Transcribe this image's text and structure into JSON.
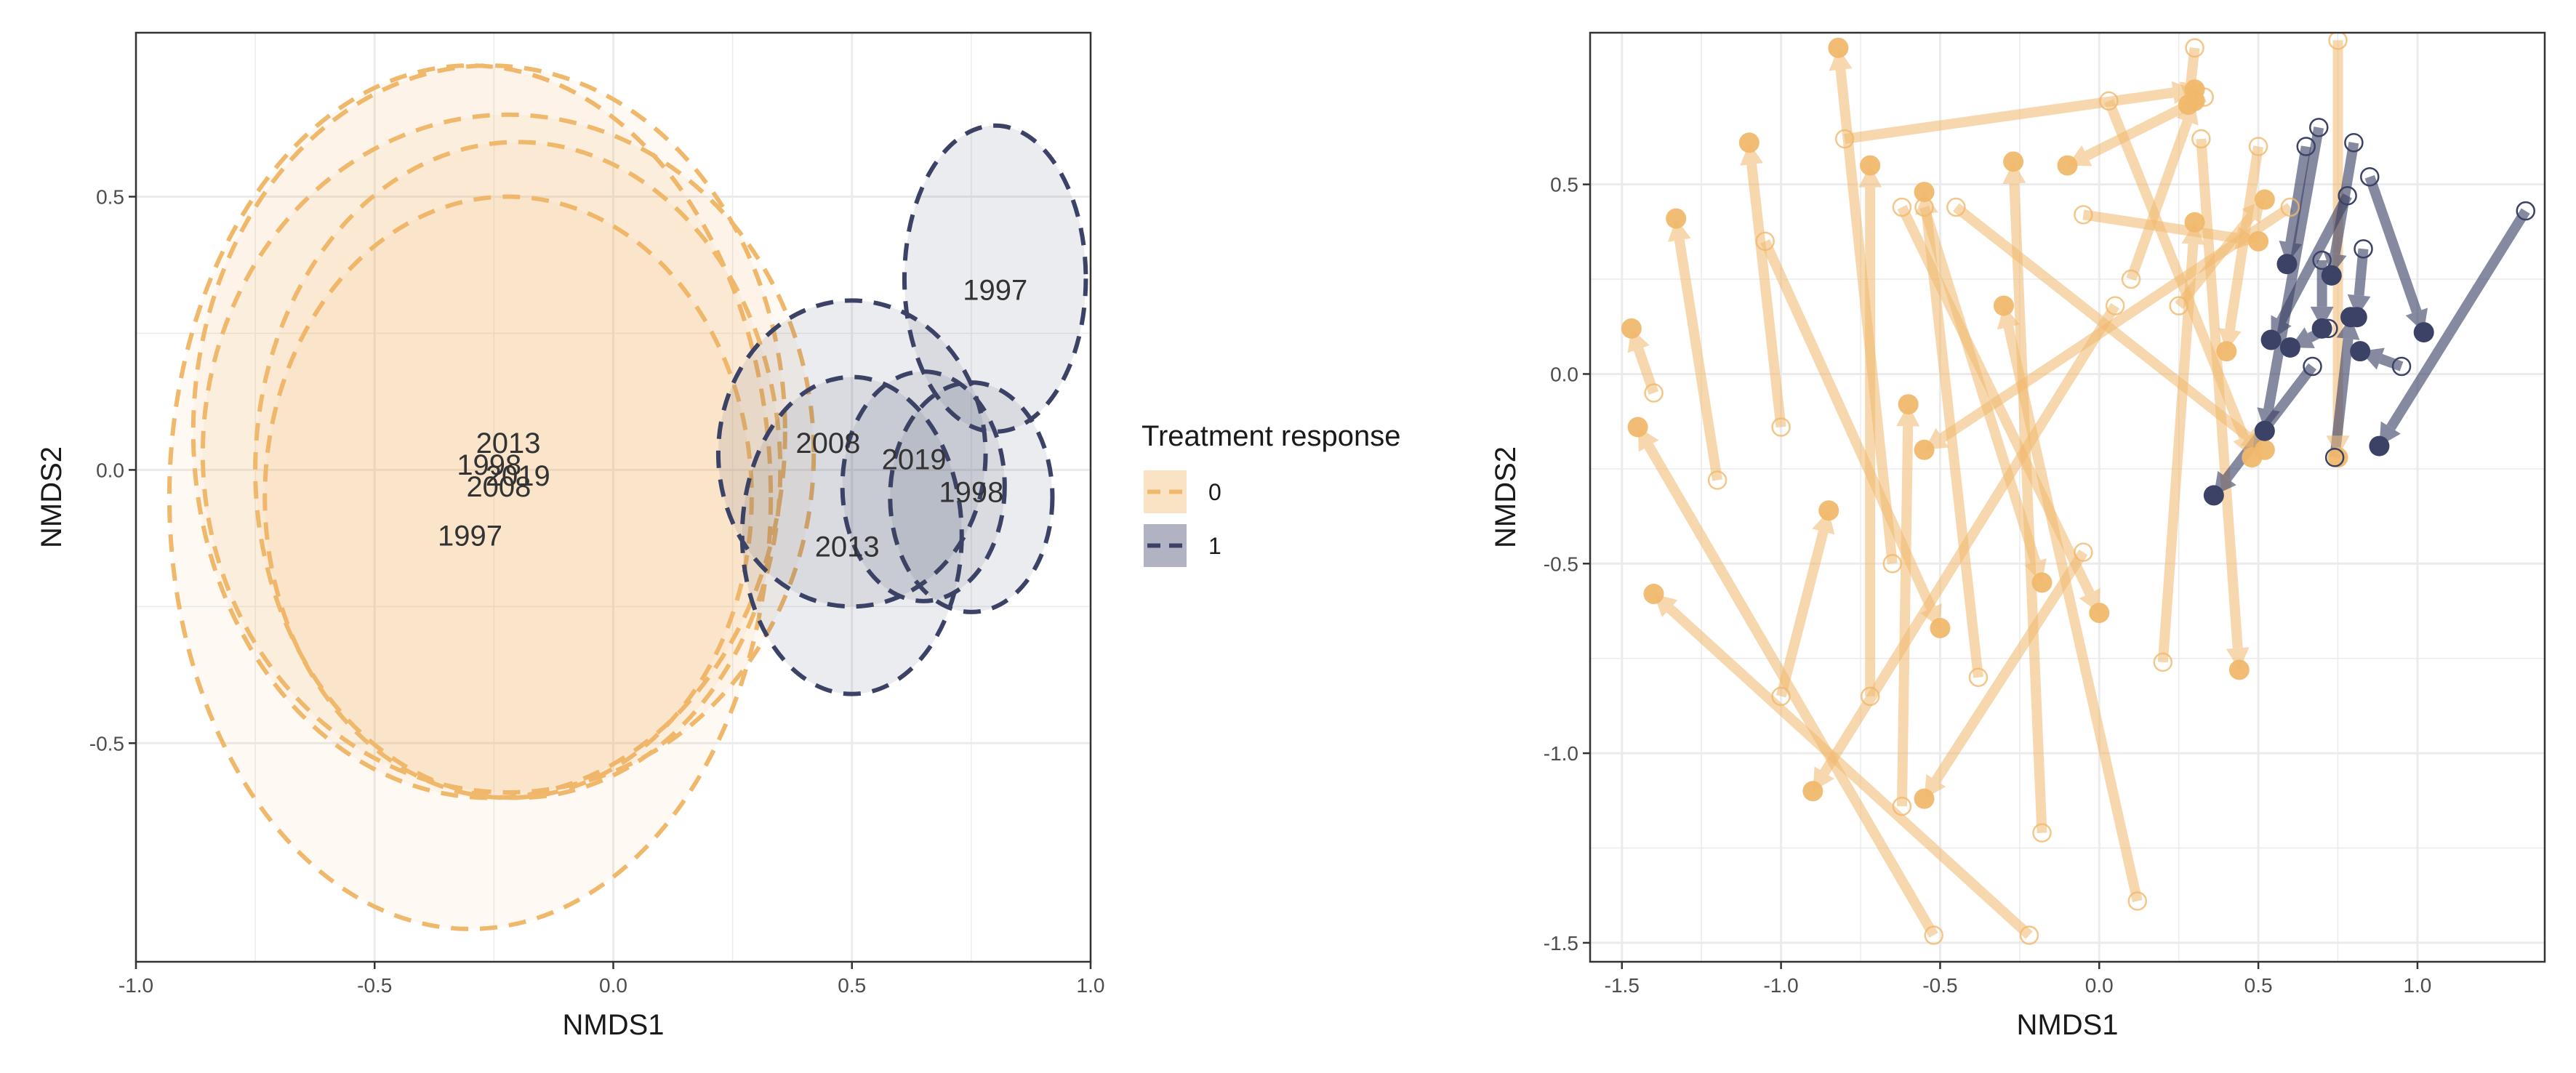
{
  "colors": {
    "group0": "#f0b86b",
    "group1": "#3b4266",
    "grid": "#ebebeb",
    "frame": "#333333"
  },
  "legend": {
    "title": "Treatment response",
    "items": [
      {
        "label": "0",
        "group": "0"
      },
      {
        "label": "1",
        "group": "1"
      }
    ]
  },
  "chart_data": [
    {
      "type": "scatter",
      "subtype": "group-ellipses",
      "xlabel": "NMDS1",
      "ylabel": "NMDS2",
      "xlim": [
        -1.0,
        1.0
      ],
      "ylim": [
        -0.9,
        0.8
      ],
      "xticks": [
        "-1.0",
        "-0.5",
        "0.0",
        "0.5",
        "1.0"
      ],
      "yticks": [
        "-0.5",
        "0.0",
        "0.5"
      ],
      "grid": true,
      "ellipses": [
        {
          "group": "0",
          "year": "1997",
          "cx": -0.3,
          "cy": -0.05,
          "rx": 0.63,
          "ry": 0.79,
          "label_x": -0.3,
          "label_y": -0.12
        },
        {
          "group": "0",
          "year": "1998",
          "cx": -0.26,
          "cy": 0.07,
          "rx": 0.62,
          "ry": 0.67,
          "label_x": -0.26,
          "label_y": 0.01
        },
        {
          "group": "0",
          "year": "2008",
          "cx": -0.22,
          "cy": 0.03,
          "rx": 0.64,
          "ry": 0.62,
          "label_x": -0.24,
          "label_y": -0.03
        },
        {
          "group": "0",
          "year": "2013",
          "cx": -0.22,
          "cy": -0.05,
          "rx": 0.51,
          "ry": 0.55,
          "label_x": -0.22,
          "label_y": 0.05
        },
        {
          "group": "0",
          "year": "2019",
          "cx": -0.2,
          "cy": 0.0,
          "rx": 0.55,
          "ry": 0.6,
          "label_x": -0.2,
          "label_y": -0.01
        },
        {
          "group": "1",
          "year": "1997",
          "cx": 0.8,
          "cy": 0.35,
          "rx": 0.19,
          "ry": 0.28,
          "label_x": 0.8,
          "label_y": 0.33
        },
        {
          "group": "1",
          "year": "1998",
          "cx": 0.75,
          "cy": -0.05,
          "rx": 0.17,
          "ry": 0.21,
          "label_x": 0.75,
          "label_y": -0.04
        },
        {
          "group": "1",
          "year": "2008",
          "cx": 0.5,
          "cy": 0.03,
          "rx": 0.28,
          "ry": 0.28,
          "label_x": 0.45,
          "label_y": 0.05
        },
        {
          "group": "1",
          "year": "2013",
          "cx": 0.5,
          "cy": -0.12,
          "rx": 0.23,
          "ry": 0.29,
          "label_x": 0.49,
          "label_y": -0.14
        },
        {
          "group": "1",
          "year": "2019",
          "cx": 0.65,
          "cy": -0.03,
          "rx": 0.17,
          "ry": 0.21,
          "label_x": 0.63,
          "label_y": 0.02
        }
      ]
    },
    {
      "type": "scatter",
      "subtype": "arrows",
      "xlabel": "NMDS1",
      "ylabel": "NMDS2",
      "xlim": [
        -1.6,
        1.4
      ],
      "ylim": [
        -1.55,
        0.9
      ],
      "xticks": [
        "-1.5",
        "-1.0",
        "-0.5",
        "0.0",
        "0.5",
        "1.0"
      ],
      "yticks": [
        "-1.5",
        "-1.0",
        "-0.5",
        "0.0",
        "0.5"
      ],
      "grid": true,
      "arrows": [
        {
          "group": "0",
          "start": [
            -0.8,
            0.62
          ],
          "end": [
            0.3,
            0.75
          ]
        },
        {
          "group": "0",
          "start": [
            -1.4,
            -0.05
          ],
          "end": [
            -1.47,
            0.12
          ]
        },
        {
          "group": "0",
          "start": [
            -1.2,
            -0.28
          ],
          "end": [
            -1.33,
            0.41
          ]
        },
        {
          "group": "0",
          "start": [
            -1.0,
            -0.14
          ],
          "end": [
            -1.1,
            0.61
          ]
        },
        {
          "group": "0",
          "start": [
            -1.05,
            0.35
          ],
          "end": [
            -0.5,
            -0.67
          ]
        },
        {
          "group": "0",
          "start": [
            -1.0,
            -0.85
          ],
          "end": [
            -0.85,
            -0.36
          ]
        },
        {
          "group": "0",
          "start": [
            -0.72,
            -0.85
          ],
          "end": [
            -0.72,
            0.55
          ]
        },
        {
          "group": "0",
          "start": [
            -0.65,
            -0.5
          ],
          "end": [
            -0.82,
            0.86
          ]
        },
        {
          "group": "0",
          "start": [
            -0.38,
            -0.8
          ],
          "end": [
            -0.55,
            0.48
          ]
        },
        {
          "group": "0",
          "start": [
            -0.62,
            0.44
          ],
          "end": [
            0.0,
            -0.63
          ]
        },
        {
          "group": "0",
          "start": [
            -0.55,
            0.44
          ],
          "end": [
            -0.18,
            -0.55
          ]
        },
        {
          "group": "0",
          "start": [
            -0.52,
            -1.48
          ],
          "end": [
            -1.45,
            -0.14
          ]
        },
        {
          "group": "0",
          "start": [
            -0.22,
            -1.48
          ],
          "end": [
            -1.4,
            -0.58
          ]
        },
        {
          "group": "0",
          "start": [
            -0.62,
            -1.14
          ],
          "end": [
            -0.6,
            -0.08
          ]
        },
        {
          "group": "0",
          "start": [
            -0.18,
            -1.21
          ],
          "end": [
            -0.27,
            0.56
          ]
        },
        {
          "group": "0",
          "start": [
            0.12,
            -1.39
          ],
          "end": [
            -0.3,
            0.18
          ]
        },
        {
          "group": "0",
          "start": [
            -0.05,
            0.42
          ],
          "end": [
            0.5,
            0.35
          ]
        },
        {
          "group": "0",
          "start": [
            -0.05,
            -0.47
          ],
          "end": [
            -0.55,
            -1.12
          ]
        },
        {
          "group": "0",
          "start": [
            0.03,
            0.72
          ],
          "end": [
            0.48,
            -0.22
          ]
        },
        {
          "group": "0",
          "start": [
            0.05,
            0.18
          ],
          "end": [
            -0.9,
            -1.1
          ]
        },
        {
          "group": "0",
          "start": [
            0.1,
            0.25
          ],
          "end": [
            0.3,
            0.72
          ]
        },
        {
          "group": "0",
          "start": [
            0.2,
            -0.76
          ],
          "end": [
            0.3,
            0.4
          ]
        },
        {
          "group": "0",
          "start": [
            0.3,
            0.86
          ],
          "end": [
            0.28,
            0.71
          ]
        },
        {
          "group": "0",
          "start": [
            0.33,
            0.73
          ],
          "end": [
            -0.1,
            0.55
          ]
        },
        {
          "group": "0",
          "start": [
            0.32,
            0.62
          ],
          "end": [
            0.44,
            -0.78
          ]
        },
        {
          "group": "0",
          "start": [
            0.5,
            0.6
          ],
          "end": [
            0.4,
            0.06
          ]
        },
        {
          "group": "0",
          "start": [
            0.75,
            0.88
          ],
          "end": [
            0.75,
            -0.22
          ]
        },
        {
          "group": "0",
          "start": [
            0.6,
            0.44
          ],
          "end": [
            -0.55,
            -0.2
          ]
        },
        {
          "group": "0",
          "start": [
            -0.45,
            0.44
          ],
          "end": [
            0.52,
            -0.2
          ]
        },
        {
          "group": "0",
          "start": [
            0.25,
            0.18
          ],
          "end": [
            0.52,
            0.46
          ]
        },
        {
          "group": "1",
          "start": [
            0.69,
            0.65
          ],
          "end": [
            0.52,
            -0.15
          ]
        },
        {
          "group": "1",
          "start": [
            0.8,
            0.61
          ],
          "end": [
            0.73,
            0.26
          ]
        },
        {
          "group": "1",
          "start": [
            0.65,
            0.6
          ],
          "end": [
            0.59,
            0.29
          ]
        },
        {
          "group": "1",
          "start": [
            0.85,
            0.52
          ],
          "end": [
            1.02,
            0.11
          ]
        },
        {
          "group": "1",
          "start": [
            1.34,
            0.43
          ],
          "end": [
            0.88,
            -0.19
          ]
        },
        {
          "group": "1",
          "start": [
            0.78,
            0.47
          ],
          "end": [
            0.54,
            0.09
          ]
        },
        {
          "group": "1",
          "start": [
            0.7,
            0.3
          ],
          "end": [
            0.7,
            0.12
          ]
        },
        {
          "group": "1",
          "start": [
            0.83,
            0.33
          ],
          "end": [
            0.81,
            0.15
          ]
        },
        {
          "group": "1",
          "start": [
            0.72,
            0.12
          ],
          "end": [
            0.6,
            0.07
          ]
        },
        {
          "group": "1",
          "start": [
            0.67,
            0.02
          ],
          "end": [
            0.36,
            -0.32
          ]
        },
        {
          "group": "1",
          "start": [
            0.95,
            0.02
          ],
          "end": [
            0.82,
            0.06
          ]
        },
        {
          "group": "1",
          "start": [
            0.74,
            -0.22
          ],
          "end": [
            0.79,
            0.15
          ]
        }
      ]
    }
  ]
}
